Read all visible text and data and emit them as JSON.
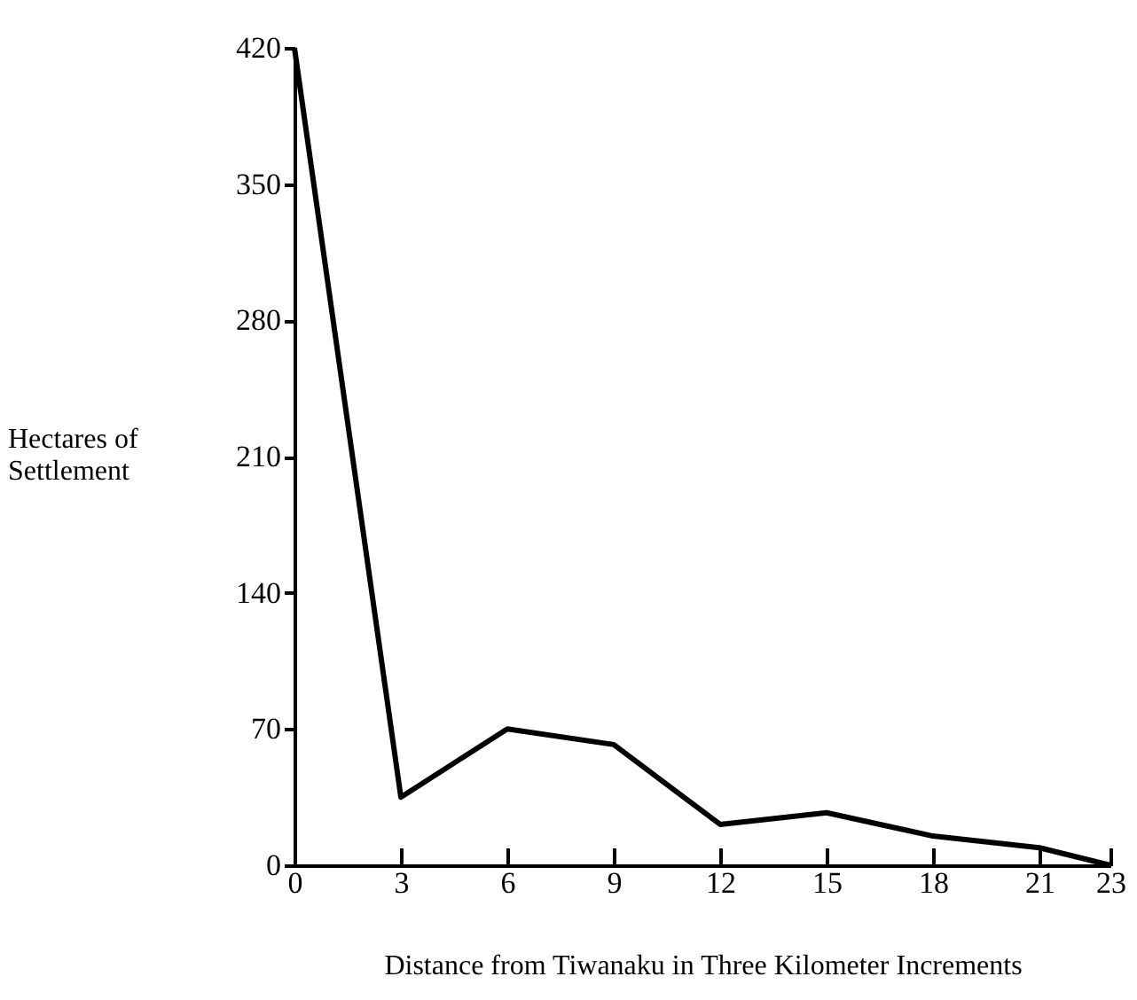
{
  "chart_data": {
    "type": "line",
    "xlabel": "Distance from Tiwanaku in Three Kilometer Increments",
    "ylabel": "Hectares of Settlement",
    "x": [
      0,
      3,
      6,
      9,
      12,
      15,
      18,
      21,
      23
    ],
    "series": [
      {
        "color": "#000000",
        "values": [
          420,
          35,
          70,
          62,
          21,
          27,
          15,
          9,
          0
        ]
      }
    ],
    "xlim": [
      0,
      23
    ],
    "xticks": [
      0,
      3,
      6,
      9,
      12,
      15,
      18,
      21,
      23
    ],
    "ylim": [
      0,
      420
    ],
    "yticks": [
      0,
      70,
      140,
      210,
      280,
      350,
      420
    ],
    "grid": false,
    "marker": "none",
    "line_style": "solid"
  }
}
